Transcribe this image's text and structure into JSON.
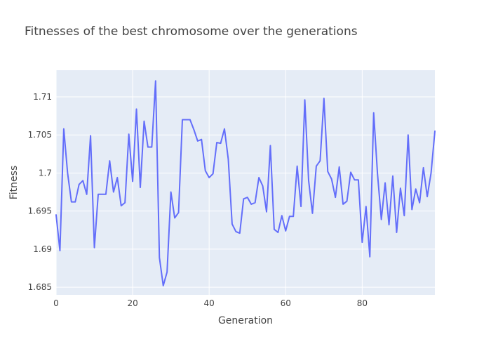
{
  "chart_data": {
    "type": "line",
    "title": "Fitnesses of the best chromosome over the generations",
    "xlabel": "Generation",
    "ylabel": "Fitness",
    "xlim": [
      0,
      99
    ],
    "ylim": [
      1.684,
      1.7135
    ],
    "grid": true,
    "x_ticks": [
      {
        "value": 0,
        "label": "0"
      },
      {
        "value": 20,
        "label": "20"
      },
      {
        "value": 40,
        "label": "40"
      },
      {
        "value": 60,
        "label": "60"
      },
      {
        "value": 80,
        "label": "80"
      }
    ],
    "y_ticks": [
      {
        "value": 1.685,
        "label": "1.685"
      },
      {
        "value": 1.69,
        "label": "1.69"
      },
      {
        "value": 1.695,
        "label": "1.695"
      },
      {
        "value": 1.7,
        "label": "1.7"
      },
      {
        "value": 1.705,
        "label": "1.705"
      },
      {
        "value": 1.71,
        "label": "1.71"
      }
    ],
    "series": [
      {
        "color": "#636efa",
        "x": [
          0,
          1,
          2,
          3,
          4,
          5,
          6,
          7,
          8,
          9,
          10,
          11,
          12,
          13,
          14,
          15,
          16,
          17,
          18,
          19,
          20,
          21,
          22,
          23,
          24,
          25,
          26,
          27,
          28,
          29,
          30,
          31,
          32,
          33,
          34,
          35,
          36,
          37,
          38,
          39,
          40,
          41,
          42,
          43,
          44,
          45,
          46,
          47,
          48,
          49,
          50,
          51,
          52,
          53,
          54,
          55,
          56,
          57,
          58,
          59,
          60,
          61,
          62,
          63,
          64,
          65,
          66,
          67,
          68,
          69,
          70,
          71,
          72,
          73,
          74,
          75,
          76,
          77,
          78,
          79,
          80,
          81,
          82,
          83,
          84,
          85,
          86,
          87,
          88,
          89,
          90,
          91,
          92,
          93,
          94,
          95,
          96,
          97,
          98,
          99
        ],
        "y": [
          1.6945,
          1.6898,
          1.7058,
          1.7,
          1.6962,
          1.6962,
          1.6985,
          1.699,
          1.6972,
          1.7049,
          1.6902,
          1.6972,
          1.6972,
          1.6972,
          1.7016,
          1.6975,
          1.6994,
          1.6957,
          1.6961,
          1.7051,
          1.6989,
          1.7084,
          1.6981,
          1.7068,
          1.7034,
          1.7034,
          1.7121,
          1.6889,
          1.6852,
          1.687,
          1.6975,
          1.6941,
          1.6948,
          1.707,
          1.707,
          1.707,
          1.7057,
          1.7042,
          1.7044,
          1.7003,
          1.6994,
          1.6999,
          1.704,
          1.7039,
          1.7058,
          1.7018,
          1.6933,
          1.6923,
          1.6921,
          1.6966,
          1.6968,
          1.6959,
          1.6961,
          1.6994,
          1.6983,
          1.6949,
          1.7036,
          1.6926,
          1.6922,
          1.6944,
          1.6924,
          1.6943,
          1.6943,
          1.7009,
          1.6956,
          1.7096,
          1.699,
          1.6947,
          1.7009,
          1.7016,
          1.7098,
          1.7002,
          1.6992,
          1.6968,
          1.7008,
          1.6959,
          1.6963,
          1.7001,
          1.6991,
          1.6991,
          1.6909,
          1.6956,
          1.689,
          1.7079,
          1.6999,
          1.6939,
          1.6987,
          1.6932,
          1.6996,
          1.6922,
          1.698,
          1.6944,
          1.705,
          1.6952,
          1.6979,
          1.6961,
          1.7007,
          1.6969,
          1.7,
          1.7055
        ]
      }
    ]
  }
}
